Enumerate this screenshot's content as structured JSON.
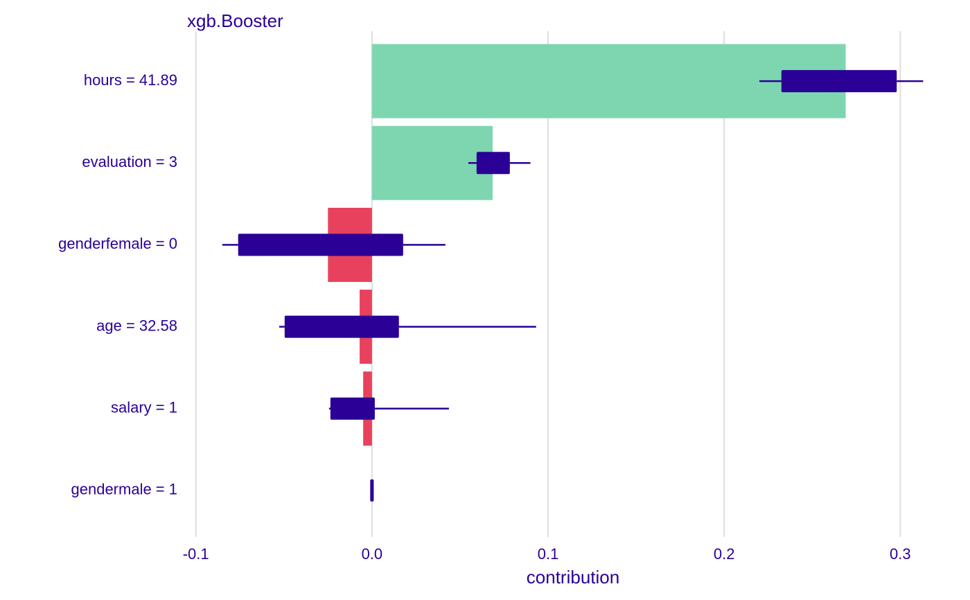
{
  "chart_data": {
    "type": "bar",
    "orientation": "horizontal",
    "title": "xgb.Booster",
    "xlabel": "contribution",
    "categories": [
      "hours = 41.89",
      "evaluation = 3",
      "genderfemale = 0",
      "age = 32.58",
      "salary = 1",
      "gendermale = 1"
    ],
    "values": [
      0.269,
      0.0685,
      -0.025,
      -0.007,
      -0.005,
      0
    ],
    "positive_color": "#7dd6b0",
    "negative_color": "#e8415e",
    "box_color": "#2a0096",
    "text_color": "#2a0096",
    "whisker_low": [
      0.22,
      0.0547,
      -0.085,
      -0.0527,
      -0.0244,
      -0.001
    ],
    "q1": [
      0.2325,
      0.0594,
      -0.076,
      -0.0496,
      -0.0236,
      -0.001
    ],
    "q3": [
      0.298,
      0.0783,
      0.0177,
      0.0153,
      0.0016,
      0.001
    ],
    "whisker_high": [
      0.313,
      0.09,
      0.0417,
      0.0932,
      0.0437,
      0.001
    ],
    "xlim": [
      -0.105,
      0.316
    ],
    "xticks": [
      -0.1,
      {
        "value": 0,
        "label": "0.0"
      },
      0.1,
      0.2,
      0.3
    ],
    "grid": true
  }
}
